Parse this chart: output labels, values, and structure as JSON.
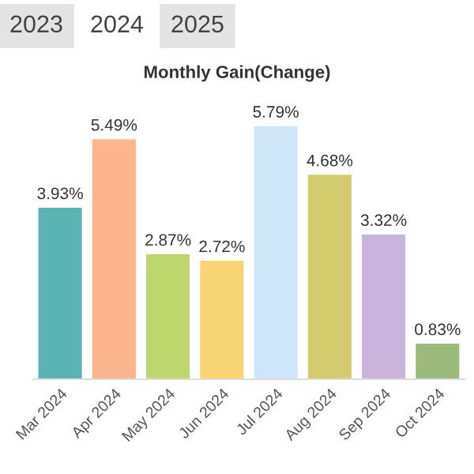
{
  "chart_data": {
    "type": "bar",
    "title": "Monthly Gain(Change)",
    "annotations": [
      "2023",
      "2024",
      "2025"
    ],
    "categories": [
      "Mar 2024",
      "Apr 2024",
      "May 2024",
      "Jun 2024",
      "Jul 2024",
      "Aug 2024",
      "Sep 2024",
      "Oct 2024"
    ],
    "values": [
      3.93,
      5.49,
      2.87,
      2.72,
      5.79,
      4.68,
      3.32,
      0.83
    ],
    "colors": [
      "#5ab4b4",
      "#fdb58e",
      "#bfd56e",
      "#f7d474",
      "#cfe5fa",
      "#d2cc6e",
      "#c9b5db",
      "#9bba7c"
    ],
    "value_labels": [
      "3.93%",
      "5.49%",
      "2.87%",
      "2.72%",
      "5.79%",
      "4.68%",
      "3.32%",
      "0.83%"
    ]
  }
}
